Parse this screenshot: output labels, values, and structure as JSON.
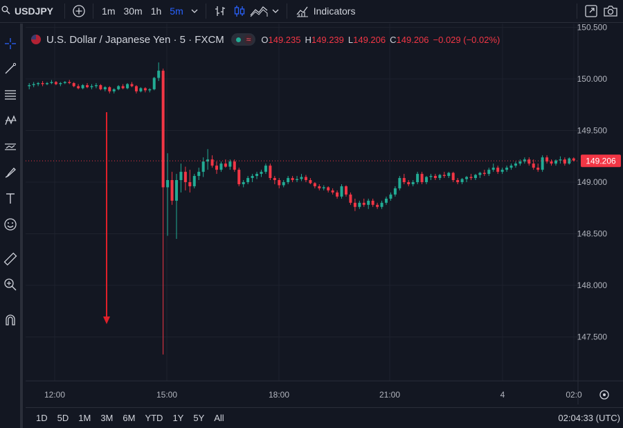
{
  "toolbar": {
    "symbol": "USDJPY",
    "intervals": [
      "1m",
      "30m",
      "1h",
      "5m"
    ],
    "active_interval": "5m",
    "indicators_label": "Indicators"
  },
  "legend": {
    "title": "U.S. Dollar / Japanese Yen · 5 · FXCM",
    "o_key": "O",
    "o_val": "149.235",
    "h_key": "H",
    "h_val": "149.239",
    "l_key": "L",
    "l_val": "149.206",
    "c_key": "C",
    "c_val": "149.206",
    "change": "−0.029 (−0.02%)"
  },
  "price_axis": {
    "ticks": [
      "150.500",
      "150.000",
      "149.500",
      "149.000",
      "148.500",
      "148.000",
      "147.500"
    ],
    "last_price": "149.206"
  },
  "time_axis": {
    "ticks": [
      "12:00",
      "15:00",
      "18:00",
      "21:00",
      "4",
      "02:0"
    ]
  },
  "ranges": [
    "1D",
    "5D",
    "1M",
    "3M",
    "6M",
    "YTD",
    "1Y",
    "5Y",
    "All"
  ],
  "clock": "02:04:33 (UTC)",
  "colors": {
    "up": "#22ab94",
    "down": "#f23645",
    "bg": "#131722",
    "grid": "#1e222d",
    "arrow": "#e0202a"
  },
  "chart_data": {
    "type": "candlestick",
    "last": 149.206,
    "ylim": [
      147.2,
      150.6
    ],
    "candles": [
      [
        149.93,
        149.96,
        149.9,
        149.94
      ],
      [
        149.94,
        149.97,
        149.92,
        149.95
      ],
      [
        149.95,
        149.97,
        149.93,
        149.96
      ],
      [
        149.96,
        149.98,
        149.93,
        149.95
      ],
      [
        149.95,
        149.97,
        149.94,
        149.96
      ],
      [
        149.96,
        149.99,
        149.95,
        149.97
      ],
      [
        149.97,
        149.98,
        149.94,
        149.95
      ],
      [
        149.95,
        149.97,
        149.93,
        149.96
      ],
      [
        149.96,
        149.98,
        149.95,
        149.97
      ],
      [
        149.97,
        149.99,
        149.95,
        149.96
      ],
      [
        149.96,
        149.97,
        149.92,
        149.93
      ],
      [
        149.93,
        149.95,
        149.9,
        149.91
      ],
      [
        149.91,
        149.95,
        149.9,
        149.94
      ],
      [
        149.94,
        149.96,
        149.91,
        149.92
      ],
      [
        149.92,
        149.95,
        149.9,
        149.93
      ],
      [
        149.93,
        149.96,
        149.91,
        149.94
      ],
      [
        149.94,
        149.95,
        149.89,
        149.9
      ],
      [
        149.9,
        149.93,
        149.88,
        149.92
      ],
      [
        149.92,
        149.93,
        149.86,
        149.88
      ],
      [
        149.88,
        149.91,
        149.86,
        149.9
      ],
      [
        149.9,
        149.94,
        149.89,
        149.93
      ],
      [
        149.93,
        149.95,
        149.9,
        149.91
      ],
      [
        149.91,
        149.96,
        149.9,
        149.95
      ],
      [
        149.95,
        149.97,
        149.92,
        149.93
      ],
      [
        149.93,
        149.94,
        149.86,
        149.88
      ],
      [
        149.88,
        149.92,
        149.87,
        149.91
      ],
      [
        149.91,
        149.92,
        149.87,
        149.89
      ],
      [
        149.89,
        149.91,
        149.87,
        149.9
      ],
      [
        149.9,
        150.02,
        149.89,
        150.01
      ],
      [
        150.01,
        150.16,
        149.98,
        150.08
      ],
      [
        150.08,
        150.1,
        147.33,
        148.95
      ],
      [
        148.95,
        149.28,
        148.48,
        149.02
      ],
      [
        149.02,
        149.1,
        148.78,
        148.82
      ],
      [
        148.82,
        149.08,
        148.45,
        149.02
      ],
      [
        149.02,
        149.18,
        148.9,
        149.1
      ],
      [
        149.1,
        149.15,
        148.92,
        149.0
      ],
      [
        149.0,
        149.12,
        148.9,
        148.96
      ],
      [
        148.96,
        149.08,
        148.94,
        149.06
      ],
      [
        149.06,
        149.14,
        149.02,
        149.1
      ],
      [
        149.1,
        149.24,
        149.05,
        149.2
      ],
      [
        149.2,
        149.32,
        149.12,
        149.22
      ],
      [
        149.22,
        149.26,
        149.14,
        149.16
      ],
      [
        149.16,
        149.2,
        149.08,
        149.12
      ],
      [
        149.12,
        149.2,
        149.1,
        149.18
      ],
      [
        149.18,
        149.22,
        149.14,
        149.15
      ],
      [
        149.15,
        149.22,
        149.12,
        149.2
      ],
      [
        149.2,
        149.22,
        149.1,
        149.12
      ],
      [
        149.12,
        149.14,
        148.96,
        148.98
      ],
      [
        148.98,
        149.02,
        148.95,
        149.0
      ],
      [
        149.0,
        149.06,
        148.98,
        149.04
      ],
      [
        149.04,
        149.08,
        149.0,
        149.06
      ],
      [
        149.06,
        149.1,
        149.03,
        149.08
      ],
      [
        149.08,
        149.12,
        149.05,
        149.1
      ],
      [
        149.1,
        149.18,
        149.08,
        149.16
      ],
      [
        149.16,
        149.18,
        149.02,
        149.04
      ],
      [
        149.04,
        149.06,
        148.98,
        149.02
      ],
      [
        149.02,
        149.04,
        148.94,
        148.97
      ],
      [
        148.97,
        149.02,
        148.95,
        149.0
      ],
      [
        149.0,
        149.06,
        148.98,
        149.04
      ],
      [
        149.04,
        149.06,
        149.0,
        149.02
      ],
      [
        149.02,
        149.06,
        149.0,
        149.03
      ],
      [
        149.03,
        149.08,
        149.01,
        149.05
      ],
      [
        149.05,
        149.07,
        149.0,
        149.02
      ],
      [
        149.02,
        149.04,
        148.98,
        148.99
      ],
      [
        148.99,
        149.0,
        148.94,
        148.96
      ],
      [
        148.96,
        148.98,
        148.92,
        148.94
      ],
      [
        148.94,
        148.97,
        148.92,
        148.95
      ],
      [
        148.95,
        148.96,
        148.9,
        148.92
      ],
      [
        148.92,
        148.94,
        148.88,
        148.9
      ],
      [
        148.9,
        148.92,
        148.84,
        148.86
      ],
      [
        148.86,
        148.98,
        148.84,
        148.96
      ],
      [
        148.96,
        148.97,
        148.86,
        148.88
      ],
      [
        148.88,
        148.9,
        148.78,
        148.8
      ],
      [
        148.8,
        148.84,
        148.72,
        148.76
      ],
      [
        148.76,
        148.82,
        148.74,
        148.8
      ],
      [
        148.8,
        148.84,
        148.76,
        148.78
      ],
      [
        148.78,
        148.84,
        148.74,
        148.82
      ],
      [
        148.82,
        148.84,
        148.76,
        148.78
      ],
      [
        148.78,
        148.8,
        148.74,
        148.76
      ],
      [
        148.76,
        148.82,
        148.74,
        148.8
      ],
      [
        148.8,
        148.86,
        148.78,
        148.84
      ],
      [
        148.84,
        148.9,
        148.82,
        148.88
      ],
      [
        148.88,
        148.96,
        148.86,
        148.94
      ],
      [
        148.94,
        149.06,
        148.92,
        149.04
      ],
      [
        149.04,
        149.08,
        148.98,
        149.0
      ],
      [
        149.0,
        149.02,
        148.96,
        148.98
      ],
      [
        148.98,
        149.02,
        148.96,
        149.0
      ],
      [
        149.0,
        149.1,
        148.98,
        149.08
      ],
      [
        149.08,
        149.1,
        148.98,
        149.0
      ],
      [
        149.0,
        149.06,
        148.98,
        149.05
      ],
      [
        149.05,
        149.08,
        149.02,
        149.06
      ],
      [
        149.06,
        149.08,
        149.02,
        149.04
      ],
      [
        149.04,
        149.08,
        149.02,
        149.07
      ],
      [
        149.07,
        149.1,
        149.04,
        149.06
      ],
      [
        149.06,
        149.1,
        149.04,
        149.09
      ],
      [
        149.09,
        149.1,
        149.0,
        149.02
      ],
      [
        149.02,
        149.04,
        148.98,
        149.0
      ],
      [
        149.0,
        149.04,
        148.98,
        149.03
      ],
      [
        149.03,
        149.06,
        149.0,
        149.05
      ],
      [
        149.05,
        149.08,
        149.02,
        149.04
      ],
      [
        149.04,
        149.08,
        149.02,
        149.07
      ],
      [
        149.07,
        149.1,
        149.04,
        149.09
      ],
      [
        149.09,
        149.12,
        149.06,
        149.08
      ],
      [
        149.08,
        149.14,
        149.06,
        149.12
      ],
      [
        149.12,
        149.18,
        149.1,
        149.14
      ],
      [
        149.14,
        149.16,
        149.08,
        149.1
      ],
      [
        149.1,
        149.14,
        149.08,
        149.12
      ],
      [
        149.12,
        149.16,
        149.1,
        149.14
      ],
      [
        149.14,
        149.18,
        149.12,
        149.16
      ],
      [
        149.16,
        149.2,
        149.14,
        149.18
      ],
      [
        149.18,
        149.22,
        149.16,
        149.2
      ],
      [
        149.2,
        149.24,
        149.18,
        149.22
      ],
      [
        149.22,
        149.24,
        149.16,
        149.18
      ],
      [
        149.18,
        149.22,
        149.12,
        149.14
      ],
      [
        149.14,
        149.18,
        149.1,
        149.12
      ],
      [
        149.12,
        149.26,
        149.1,
        149.24
      ],
      [
        149.24,
        149.26,
        149.18,
        149.2
      ],
      [
        149.2,
        149.22,
        149.16,
        149.18
      ],
      [
        149.18,
        149.22,
        149.16,
        149.21
      ],
      [
        149.21,
        149.25,
        149.18,
        149.22
      ],
      [
        149.22,
        149.24,
        149.16,
        149.18
      ],
      [
        149.18,
        149.24,
        149.17,
        149.23
      ],
      [
        149.23,
        149.24,
        149.2,
        149.21
      ]
    ]
  }
}
